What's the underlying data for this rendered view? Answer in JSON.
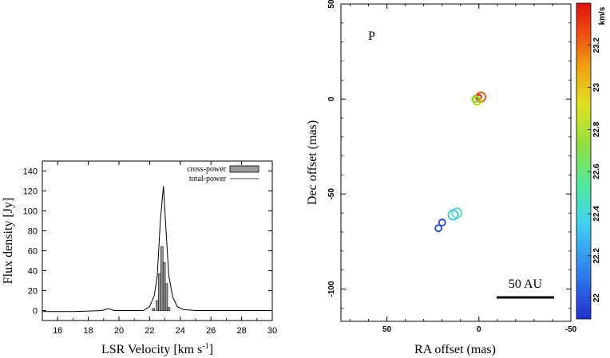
{
  "chart_data": [
    {
      "type": "bar",
      "xlabel": "LSR Velocity [km s",
      "xlabel_sup": "-1",
      "xlabel_end": "]",
      "ylabel": "Flux density [Jy]",
      "xlim": [
        15,
        30
      ],
      "ylim": [
        -10,
        150
      ],
      "xticks": [
        16,
        18,
        20,
        22,
        24,
        26,
        28,
        30
      ],
      "yticks": [
        0,
        20,
        40,
        60,
        80,
        100,
        120,
        140
      ],
      "legend": [
        "cross-power",
        "total-power"
      ],
      "legend_position": "top-right",
      "series": [
        {
          "name": "cross-power",
          "style": "bars",
          "x": [
            22.25,
            22.5,
            22.65,
            22.8,
            22.95,
            23.1,
            23.25
          ],
          "values": [
            2,
            10,
            37,
            64,
            48,
            27,
            3
          ]
        },
        {
          "name": "total-power",
          "style": "line",
          "x": [
            15,
            17,
            18.9,
            19.3,
            19.7,
            21,
            21.6,
            22.0,
            22.3,
            22.5,
            22.7,
            22.9,
            23.05,
            23.25,
            23.5,
            23.8,
            24.2,
            25,
            26,
            30
          ],
          "values": [
            -1,
            -1,
            0,
            2,
            0,
            0,
            0,
            4,
            15,
            35,
            90,
            125,
            85,
            35,
            14,
            4,
            1,
            0,
            0,
            0
          ]
        }
      ]
    },
    {
      "type": "scatter",
      "panel_label": "P",
      "xlabel": "RA offset (mas)",
      "ylabel": "Dec offset (mas)",
      "xlim": [
        75,
        -50
      ],
      "ylim": [
        -117,
        50
      ],
      "xticks": [
        50,
        0,
        -50
      ],
      "yticks": [
        50,
        0,
        -50,
        -100
      ],
      "scale_bar": {
        "label": "50 AU",
        "length_mas": 30
      },
      "colorbar": {
        "label": "km/s",
        "range": [
          21.9,
          23.4
        ],
        "ticks": [
          "22",
          "22.2",
          "22.4",
          "22.6",
          "22.8",
          "23",
          "23.2"
        ]
      },
      "points": [
        {
          "x": -1,
          "y": 1,
          "v": 23.15,
          "r": 6,
          "color": "#e06010"
        },
        {
          "x": 0,
          "y": 1,
          "v": 23.35,
          "r": 3,
          "color": "#dd1111"
        },
        {
          "x": 1,
          "y": -1,
          "v": 22.85,
          "r": 5,
          "color": "#b0dd10"
        },
        {
          "x": 2,
          "y": 0,
          "v": 22.75,
          "r": 4,
          "color": "#88d830"
        },
        {
          "x": 12,
          "y": -60,
          "v": 22.4,
          "r": 6,
          "color": "#60e0c0"
        },
        {
          "x": 14,
          "y": -61,
          "v": 22.3,
          "r": 6,
          "color": "#40c8e0"
        },
        {
          "x": 20,
          "y": -65,
          "v": 22.0,
          "r": 4,
          "color": "#3050e0"
        },
        {
          "x": 22,
          "y": -68,
          "v": 22.0,
          "r": 4,
          "color": "#3050e0"
        }
      ]
    }
  ]
}
